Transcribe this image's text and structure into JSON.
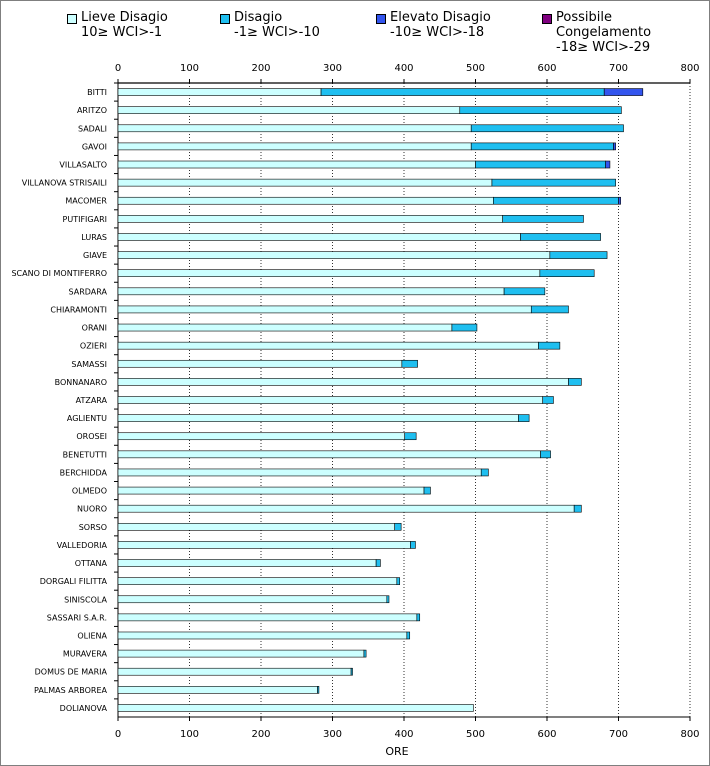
{
  "chart_data": {
    "type": "bar",
    "orientation": "horizontal",
    "stacked": true,
    "xlabel": "ORE",
    "xlim": [
      0,
      800
    ],
    "xticks": [
      0,
      100,
      200,
      300,
      400,
      500,
      600,
      700,
      800
    ],
    "categories": [
      "BITTI",
      "ARITZO",
      "SADALI",
      "GAVOI",
      "VILLASALTO",
      "VILLANOVA  STRISAILI",
      "MACOMER",
      "PUTIFIGARI",
      "LURAS",
      "GIAVE",
      "SCANO DI MONTIFERRO",
      "SARDARA",
      "CHIARAMONTI",
      "ORANI",
      "OZIERI",
      "SAMASSI",
      "BONNANARO",
      "ATZARA",
      "AGLIENTU",
      "OROSEI",
      "BENETUTTI",
      "BERCHIDDA",
      "OLMEDO",
      "NUORO",
      "SORSO",
      "VALLEDORIA",
      "OTTANA",
      "DORGALI FILITTA",
      "SINISCOLA",
      "SASSARI S.A.R.",
      "OLIENA",
      "MURAVERA",
      "DOMUS DE MARIA",
      "PALMAS ARBOREA",
      "DOLIANOVA"
    ],
    "series": [
      {
        "name": "Lieve Disagio",
        "range": "10≥ WCI>-1",
        "color": "#ccffff",
        "values": [
          284,
          478,
          494,
          494,
          500,
          523,
          525,
          538,
          563,
          604,
          590,
          540,
          578,
          467,
          588,
          397,
          630,
          594,
          560,
          401,
          591,
          508,
          428,
          638,
          387,
          409,
          361,
          390,
          376,
          418,
          404,
          344,
          326,
          279,
          497
        ]
      },
      {
        "name": "Disagio",
        "range": "-1≥ WCI>-10",
        "color": "#1fbff0",
        "values": [
          396,
          226,
          213,
          199,
          182,
          173,
          175,
          113,
          112,
          80,
          76,
          57,
          52,
          35,
          30,
          22,
          18,
          15,
          15,
          16,
          14,
          10,
          9,
          10,
          9,
          7,
          6,
          4,
          3,
          4,
          4,
          3,
          2,
          2,
          0
        ]
      },
      {
        "name": "Elevato Disagio",
        "range": "-10≥ WCI>-18",
        "color": "#3355ee",
        "values": [
          54,
          0,
          0,
          3,
          6,
          0,
          3,
          0,
          0,
          0,
          0,
          0,
          0,
          0,
          0,
          0,
          0,
          0,
          0,
          0,
          0,
          0,
          0,
          0,
          0,
          0,
          0,
          0,
          0,
          0,
          0,
          0,
          0,
          0,
          0
        ]
      },
      {
        "name": "Possibile Congelamento",
        "range": "-18≥ WCI>-29",
        "color": "#800080",
        "values": [
          0,
          0,
          0,
          0,
          0,
          0,
          0,
          0,
          0,
          0,
          0,
          0,
          0,
          0,
          0,
          0,
          0,
          0,
          0,
          0,
          0,
          0,
          0,
          0,
          0,
          0,
          0,
          0,
          0,
          0,
          0,
          0,
          0,
          0,
          0
        ]
      }
    ],
    "legend_position": "top",
    "grid": "vertical dotted"
  }
}
